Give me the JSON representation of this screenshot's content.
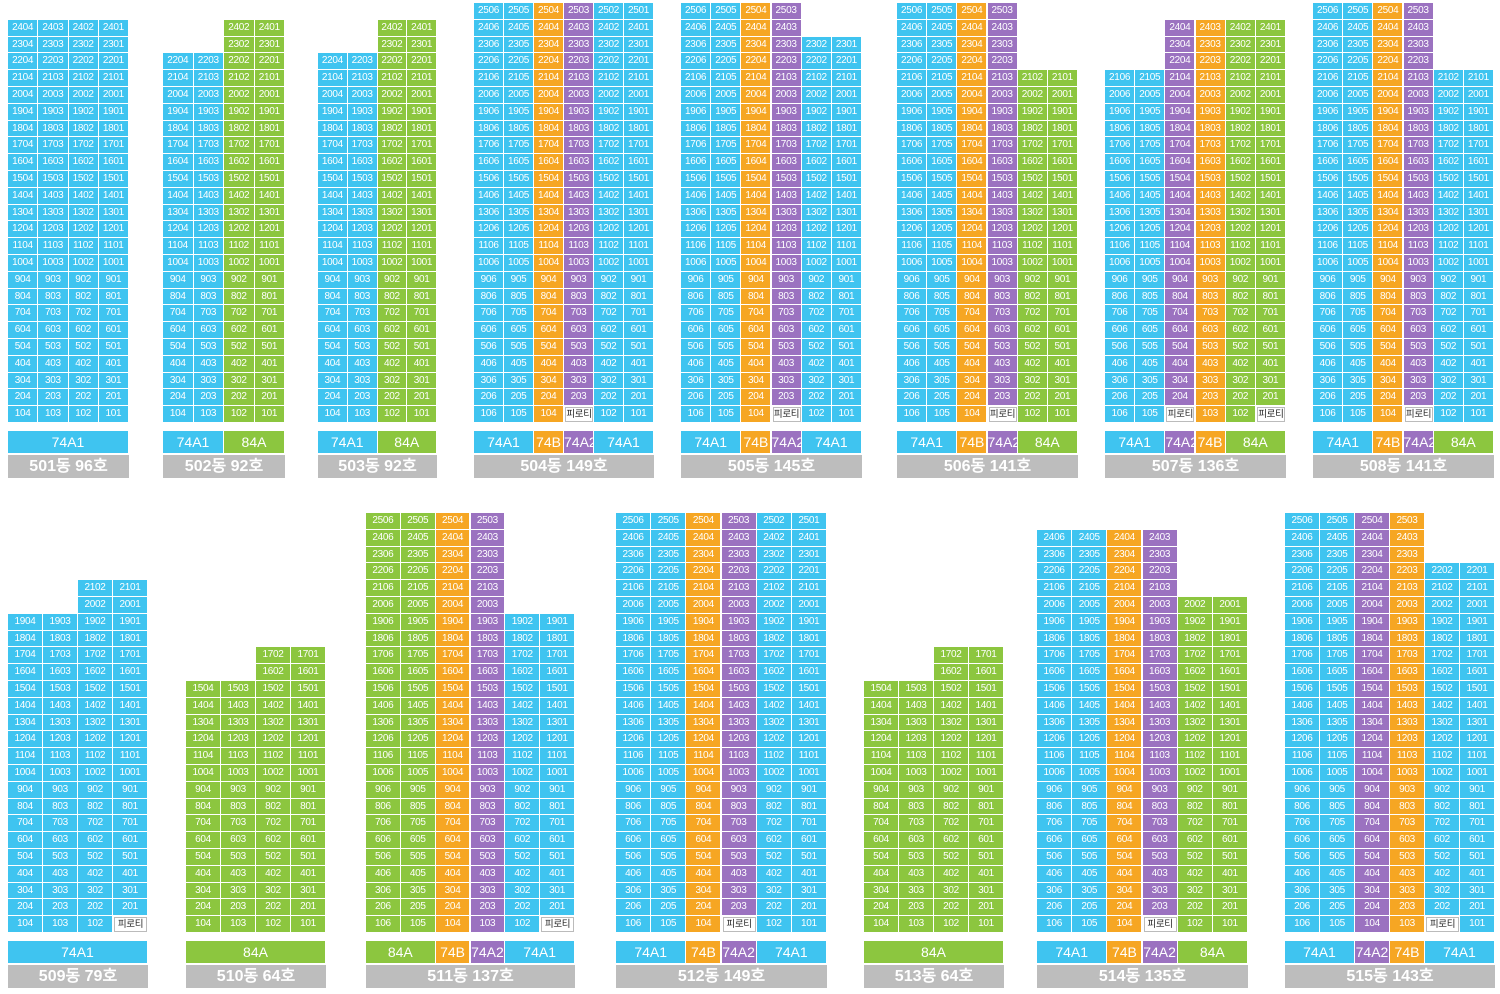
{
  "colors": {
    "74A1": "#3fc4f0",
    "84A": "#8cc63f",
    "74B": "#f6a623",
    "74A2": "#9b72c0"
  },
  "piloti_text": "피로티",
  "buildings": [
    {
      "label": "501동 96호",
      "types": [
        {
          "name": "74A1",
          "span": 4
        }
      ],
      "stacks": [
        {
          "line": "04",
          "type": "74A1",
          "top": 24,
          "bottom": 1
        },
        {
          "line": "03",
          "type": "74A1",
          "top": 24,
          "bottom": 1
        },
        {
          "line": "02",
          "type": "74A1",
          "top": 24,
          "bottom": 1
        },
        {
          "line": "01",
          "type": "74A1",
          "top": 24,
          "bottom": 1
        }
      ]
    },
    {
      "label": "502동 92호",
      "types": [
        {
          "name": "74A1",
          "span": 2
        },
        {
          "name": "84A",
          "span": 2
        }
      ],
      "stacks": [
        {
          "line": "04",
          "type": "74A1",
          "top": 22,
          "bottom": 1
        },
        {
          "line": "03",
          "type": "74A1",
          "top": 22,
          "bottom": 1
        },
        {
          "line": "02",
          "type": "84A",
          "top": 24,
          "bottom": 1
        },
        {
          "line": "01",
          "type": "84A",
          "top": 24,
          "bottom": 1
        }
      ]
    },
    {
      "label": "503동 92호",
      "types": [
        {
          "name": "74A1",
          "span": 2
        },
        {
          "name": "84A",
          "span": 2
        }
      ],
      "stacks": [
        {
          "line": "04",
          "type": "74A1",
          "top": 22,
          "bottom": 1
        },
        {
          "line": "03",
          "type": "74A1",
          "top": 22,
          "bottom": 1
        },
        {
          "line": "02",
          "type": "84A",
          "top": 24,
          "bottom": 1
        },
        {
          "line": "01",
          "type": "84A",
          "top": 24,
          "bottom": 1
        }
      ]
    },
    {
      "label": "504동 149호",
      "types": [
        {
          "name": "74A1",
          "span": 2
        },
        {
          "name": "74B",
          "span": 1
        },
        {
          "name": "74A2",
          "span": 1
        },
        {
          "name": "74A1",
          "span": 2
        }
      ],
      "stacks": [
        {
          "line": "06",
          "type": "74A1",
          "top": 25,
          "bottom": 1
        },
        {
          "line": "05",
          "type": "74A1",
          "top": 25,
          "bottom": 1
        },
        {
          "line": "04",
          "type": "74B",
          "top": 25,
          "bottom": 1
        },
        {
          "line": "03",
          "type": "74A2",
          "top": 25,
          "bottom": 2,
          "piloti": true
        },
        {
          "line": "02",
          "type": "74A1",
          "top": 25,
          "bottom": 1
        },
        {
          "line": "01",
          "type": "74A1",
          "top": 25,
          "bottom": 1
        }
      ]
    },
    {
      "label": "505동 145호",
      "types": [
        {
          "name": "74A1",
          "span": 2
        },
        {
          "name": "74B",
          "span": 1
        },
        {
          "name": "74A2",
          "span": 1
        },
        {
          "name": "74A1",
          "span": 2
        }
      ],
      "stacks": [
        {
          "line": "06",
          "type": "74A1",
          "top": 25,
          "bottom": 1
        },
        {
          "line": "05",
          "type": "74A1",
          "top": 25,
          "bottom": 1
        },
        {
          "line": "04",
          "type": "74B",
          "top": 25,
          "bottom": 1
        },
        {
          "line": "03",
          "type": "74A2",
          "top": 25,
          "bottom": 2,
          "piloti": true
        },
        {
          "line": "02",
          "type": "74A1",
          "top": 23,
          "bottom": 1
        },
        {
          "line": "01",
          "type": "74A1",
          "top": 23,
          "bottom": 1
        }
      ]
    },
    {
      "label": "506동 141호",
      "types": [
        {
          "name": "74A1",
          "span": 2
        },
        {
          "name": "74B",
          "span": 1
        },
        {
          "name": "74A2",
          "span": 1
        },
        {
          "name": "84A",
          "span": 2
        }
      ],
      "stacks": [
        {
          "line": "06",
          "type": "74A1",
          "top": 25,
          "bottom": 1
        },
        {
          "line": "05",
          "type": "74A1",
          "top": 25,
          "bottom": 1
        },
        {
          "line": "04",
          "type": "74B",
          "top": 25,
          "bottom": 1
        },
        {
          "line": "03",
          "type": "74A2",
          "top": 25,
          "bottom": 2,
          "piloti": true
        },
        {
          "line": "02",
          "type": "84A",
          "top": 21,
          "bottom": 1
        },
        {
          "line": "01",
          "type": "84A",
          "top": 21,
          "bottom": 1
        }
      ]
    },
    {
      "label": "507동 136호",
      "types": [
        {
          "name": "74A1",
          "span": 2
        },
        {
          "name": "74A2",
          "span": 1
        },
        {
          "name": "74B",
          "span": 1
        },
        {
          "name": "84A",
          "span": 2
        }
      ],
      "stacks": [
        {
          "line": "06",
          "type": "74A1",
          "top": 21,
          "bottom": 1
        },
        {
          "line": "05",
          "type": "74A1",
          "top": 21,
          "bottom": 1
        },
        {
          "line": "04",
          "type": "74A2",
          "top": 24,
          "bottom": 2,
          "piloti": true
        },
        {
          "line": "03",
          "type": "74B",
          "top": 24,
          "bottom": 1
        },
        {
          "line": "02",
          "type": "84A",
          "top": 24,
          "bottom": 1
        },
        {
          "line": "01",
          "type": "84A",
          "top": 24,
          "bottom": 2,
          "piloti": true
        }
      ]
    },
    {
      "label": "508동 141호",
      "types": [
        {
          "name": "74A1",
          "span": 2
        },
        {
          "name": "74B",
          "span": 1
        },
        {
          "name": "74A2",
          "span": 1
        },
        {
          "name": "84A",
          "span": 2
        }
      ],
      "stacks": [
        {
          "line": "06",
          "type": "74A1",
          "top": 25,
          "bottom": 1
        },
        {
          "line": "05",
          "type": "74A1",
          "top": 25,
          "bottom": 1
        },
        {
          "line": "04",
          "type": "74B",
          "top": 25,
          "bottom": 1
        },
        {
          "line": "03",
          "type": "74A2",
          "top": 25,
          "bottom": 2,
          "piloti": true
        },
        {
          "line": "02",
          "type": "74A1",
          "top": 21,
          "bottom": 1
        },
        {
          "line": "01",
          "type": "74A1",
          "top": 21,
          "bottom": 1
        }
      ]
    },
    {
      "label": "509동 79호",
      "types": [
        {
          "name": "74A1",
          "span": 4
        }
      ],
      "stacks": [
        {
          "line": "04",
          "type": "74A1",
          "top": 19,
          "bottom": 1
        },
        {
          "line": "03",
          "type": "74A1",
          "top": 19,
          "bottom": 1
        },
        {
          "line": "02",
          "type": "74A1",
          "top": 21,
          "bottom": 1
        },
        {
          "line": "01",
          "type": "74A1",
          "top": 21,
          "bottom": 2,
          "piloti": true
        }
      ]
    },
    {
      "label": "510동 64호",
      "types": [
        {
          "name": "84A",
          "span": 4
        }
      ],
      "stacks": [
        {
          "line": "04",
          "type": "84A",
          "top": 15,
          "bottom": 1
        },
        {
          "line": "03",
          "type": "84A",
          "top": 15,
          "bottom": 1
        },
        {
          "line": "02",
          "type": "84A",
          "top": 17,
          "bottom": 1
        },
        {
          "line": "01",
          "type": "84A",
          "top": 17,
          "bottom": 1
        }
      ]
    },
    {
      "label": "511동 137호",
      "types": [
        {
          "name": "84A",
          "span": 2
        },
        {
          "name": "74B",
          "span": 1
        },
        {
          "name": "74A2",
          "span": 1
        },
        {
          "name": "74A1",
          "span": 2
        }
      ],
      "stacks": [
        {
          "line": "06",
          "type": "84A",
          "top": 25,
          "bottom": 1
        },
        {
          "line": "05",
          "type": "84A",
          "top": 25,
          "bottom": 1
        },
        {
          "line": "04",
          "type": "74B",
          "top": 25,
          "bottom": 1
        },
        {
          "line": "03",
          "type": "74A2",
          "top": 25,
          "bottom": 1
        },
        {
          "line": "02",
          "type": "74A1",
          "top": 19,
          "bottom": 1
        },
        {
          "line": "01",
          "type": "74A1",
          "top": 19,
          "bottom": 2,
          "piloti": true
        }
      ]
    },
    {
      "label": "512동 149호",
      "types": [
        {
          "name": "74A1",
          "span": 2
        },
        {
          "name": "74B",
          "span": 1
        },
        {
          "name": "74A2",
          "span": 1
        },
        {
          "name": "74A1",
          "span": 2
        }
      ],
      "stacks": [
        {
          "line": "06",
          "type": "74A1",
          "top": 25,
          "bottom": 1
        },
        {
          "line": "05",
          "type": "74A1",
          "top": 25,
          "bottom": 1
        },
        {
          "line": "04",
          "type": "74B",
          "top": 25,
          "bottom": 1
        },
        {
          "line": "03",
          "type": "74A2",
          "top": 25,
          "bottom": 2,
          "piloti": true
        },
        {
          "line": "02",
          "type": "74A1",
          "top": 25,
          "bottom": 1
        },
        {
          "line": "01",
          "type": "74A1",
          "top": 25,
          "bottom": 1
        }
      ]
    },
    {
      "label": "513동 64호",
      "types": [
        {
          "name": "84A",
          "span": 4
        }
      ],
      "stacks": [
        {
          "line": "04",
          "type": "84A",
          "top": 15,
          "bottom": 1
        },
        {
          "line": "03",
          "type": "84A",
          "top": 15,
          "bottom": 1
        },
        {
          "line": "02",
          "type": "84A",
          "top": 17,
          "bottom": 1
        },
        {
          "line": "01",
          "type": "84A",
          "top": 17,
          "bottom": 1
        }
      ]
    },
    {
      "label": "514동 135호",
      "types": [
        {
          "name": "74A1",
          "span": 2
        },
        {
          "name": "74B",
          "span": 1
        },
        {
          "name": "74A2",
          "span": 1
        },
        {
          "name": "84A",
          "span": 2
        }
      ],
      "stacks": [
        {
          "line": "06",
          "type": "74A1",
          "top": 24,
          "bottom": 1
        },
        {
          "line": "05",
          "type": "74A1",
          "top": 24,
          "bottom": 1
        },
        {
          "line": "04",
          "type": "74B",
          "top": 24,
          "bottom": 1
        },
        {
          "line": "03",
          "type": "74A2",
          "top": 24,
          "bottom": 2,
          "piloti": true
        },
        {
          "line": "02",
          "type": "84A",
          "top": 20,
          "bottom": 1
        },
        {
          "line": "01",
          "type": "84A",
          "top": 20,
          "bottom": 1
        }
      ]
    },
    {
      "label": "515동 143호",
      "types": [
        {
          "name": "74A1",
          "span": 2
        },
        {
          "name": "74A2",
          "span": 1
        },
        {
          "name": "74B",
          "span": 1
        },
        {
          "name": "74A1",
          "span": 2
        }
      ],
      "stacks": [
        {
          "line": "06",
          "type": "74A1",
          "top": 25,
          "bottom": 1
        },
        {
          "line": "05",
          "type": "74A1",
          "top": 25,
          "bottom": 1
        },
        {
          "line": "04",
          "type": "74A2",
          "top": 25,
          "bottom": 1
        },
        {
          "line": "03",
          "type": "74B",
          "top": 25,
          "bottom": 1
        },
        {
          "line": "02",
          "type": "74A1",
          "top": 22,
          "bottom": 2,
          "piloti": true
        },
        {
          "line": "01",
          "type": "74A1",
          "top": 22,
          "bottom": 1
        }
      ]
    }
  ]
}
